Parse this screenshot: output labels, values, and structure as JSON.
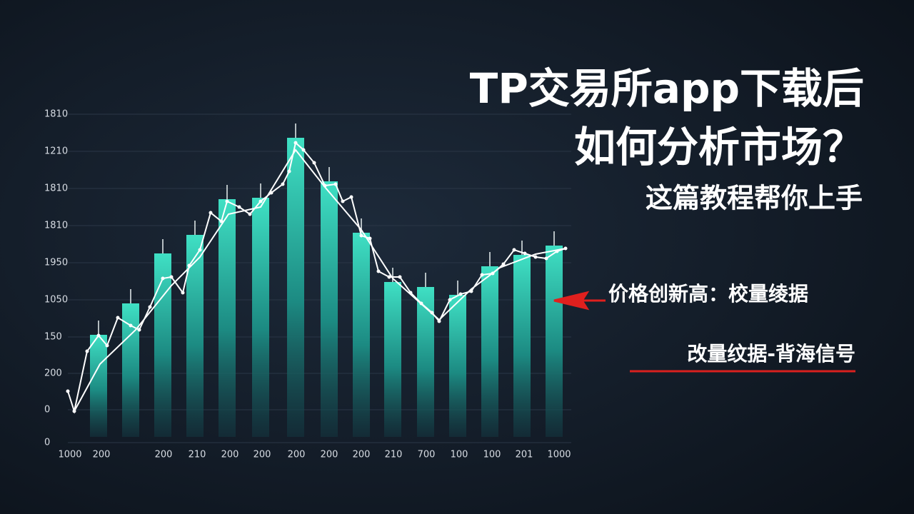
{
  "header": {
    "title_line_1": "TP交易所app下载后",
    "title_line_2": "如何分析市场？",
    "subtitle": "这篇教程帮你上手"
  },
  "annotations": {
    "arrow_note": "价格创新高：校量绫据",
    "underlined_note": "改量纹据-背海信号"
  },
  "chart_axis": {
    "y_labels": [
      "1810",
      "1210",
      "1810",
      "1810",
      "1950",
      "1050",
      "150",
      "200",
      "0",
      "0"
    ],
    "x_labels": [
      "1000",
      "200",
      "200",
      "210",
      "200",
      "200",
      "200",
      "200",
      "200",
      "210",
      "700",
      "100",
      "100",
      "201",
      "1000"
    ]
  }
}
